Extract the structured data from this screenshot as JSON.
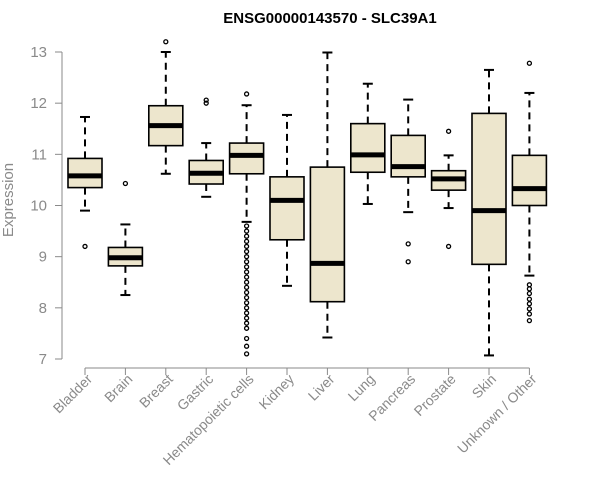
{
  "chart_data": {
    "type": "boxplot",
    "title": "ENSG00000143570 - SLC39A1",
    "xlabel": "",
    "ylabel": "Expression",
    "ylim": [
      7,
      13
    ],
    "yticks": [
      7,
      8,
      9,
      10,
      11,
      12,
      13
    ],
    "box_fill": "#ede6cd",
    "categories": [
      "Bladder",
      "Brain",
      "Breast",
      "Gastric",
      "Hematopoietic cells",
      "Kidney",
      "Liver",
      "Lung",
      "Pancreas",
      "Prostate",
      "Skin",
      "Unknown / Other"
    ],
    "series": [
      {
        "name": "Bladder",
        "whisker_low": 9.9,
        "q1": 10.35,
        "median": 10.58,
        "q3": 10.92,
        "whisker_high": 11.73,
        "outliers": [
          9.2
        ]
      },
      {
        "name": "Brain",
        "whisker_low": 8.25,
        "q1": 8.82,
        "median": 8.98,
        "q3": 9.18,
        "whisker_high": 9.63,
        "outliers": [
          10.43
        ]
      },
      {
        "name": "Breast",
        "whisker_low": 10.62,
        "q1": 11.17,
        "median": 11.56,
        "q3": 11.95,
        "whisker_high": 13.0,
        "outliers": [
          13.2
        ]
      },
      {
        "name": "Gastric",
        "whisker_low": 10.17,
        "q1": 10.42,
        "median": 10.63,
        "q3": 10.88,
        "whisker_high": 11.22,
        "outliers": [
          12.0,
          12.06
        ]
      },
      {
        "name": "Hematopoietic cells",
        "whisker_low": 9.68,
        "q1": 10.62,
        "median": 10.98,
        "q3": 11.22,
        "whisker_high": 11.96,
        "outliers": [
          12.18,
          9.6,
          9.5,
          9.4,
          9.3,
          9.2,
          9.1,
          9.0,
          8.9,
          8.8,
          8.7,
          8.6,
          8.5,
          8.4,
          8.3,
          8.2,
          8.1,
          8.0,
          7.9,
          7.8,
          7.7,
          7.6,
          7.4,
          7.25,
          7.1
        ]
      },
      {
        "name": "Kidney",
        "whisker_low": 8.43,
        "q1": 9.33,
        "median": 10.1,
        "q3": 10.56,
        "whisker_high": 11.77,
        "outliers": []
      },
      {
        "name": "Liver",
        "whisker_low": 7.42,
        "q1": 8.12,
        "median": 8.87,
        "q3": 10.75,
        "whisker_high": 12.99,
        "outliers": []
      },
      {
        "name": "Lung",
        "whisker_low": 10.03,
        "q1": 10.65,
        "median": 10.99,
        "q3": 11.6,
        "whisker_high": 12.38,
        "outliers": []
      },
      {
        "name": "Pancreas",
        "whisker_low": 9.87,
        "q1": 10.56,
        "median": 10.76,
        "q3": 11.37,
        "whisker_high": 12.07,
        "outliers": [
          9.25,
          8.9
        ]
      },
      {
        "name": "Prostate",
        "whisker_low": 9.95,
        "q1": 10.3,
        "median": 10.52,
        "q3": 10.68,
        "whisker_high": 10.98,
        "outliers": [
          11.45,
          9.2
        ]
      },
      {
        "name": "Skin",
        "whisker_low": 7.07,
        "q1": 8.85,
        "median": 9.9,
        "q3": 11.8,
        "whisker_high": 12.65,
        "outliers": []
      },
      {
        "name": "Unknown / Other",
        "whisker_low": 8.63,
        "q1": 10.0,
        "median": 10.33,
        "q3": 10.98,
        "whisker_high": 12.2,
        "outliers": [
          12.78,
          8.45,
          8.37,
          8.28,
          8.17,
          8.08,
          7.98,
          7.88,
          7.75
        ]
      }
    ]
  }
}
